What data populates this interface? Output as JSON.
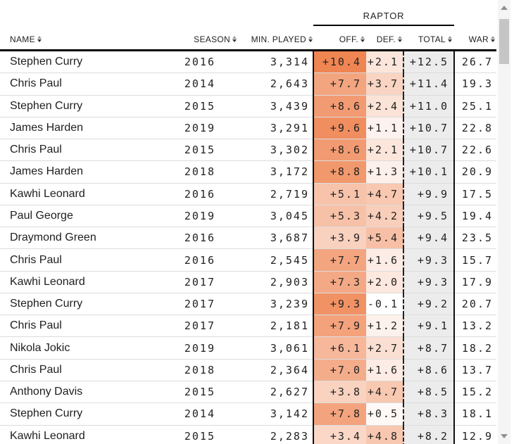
{
  "table": {
    "group_header": {
      "label": "RAPTOR"
    },
    "columns": [
      {
        "id": "name",
        "label": "NAME"
      },
      {
        "id": "season",
        "label": "SEASON"
      },
      {
        "id": "min",
        "label": "MIN. PLAYED"
      },
      {
        "id": "off",
        "label": "OFF."
      },
      {
        "id": "def",
        "label": "DEF."
      },
      {
        "id": "total",
        "label": "TOTAL"
      },
      {
        "id": "war",
        "label": "WAR"
      }
    ],
    "rows": [
      {
        "name": "Stephen Curry",
        "season": "2016",
        "min": "3,314",
        "off": "+10.4",
        "def": "+2.1",
        "total": "+12.5",
        "war": "26.7"
      },
      {
        "name": "Chris Paul",
        "season": "2014",
        "min": "2,643",
        "off": "+7.7",
        "def": "+3.7",
        "total": "+11.4",
        "war": "19.3"
      },
      {
        "name": "Stephen Curry",
        "season": "2015",
        "min": "3,439",
        "off": "+8.6",
        "def": "+2.4",
        "total": "+11.0",
        "war": "25.1"
      },
      {
        "name": "James Harden",
        "season": "2019",
        "min": "3,291",
        "off": "+9.6",
        "def": "+1.1",
        "total": "+10.7",
        "war": "22.8"
      },
      {
        "name": "Chris Paul",
        "season": "2015",
        "min": "3,302",
        "off": "+8.6",
        "def": "+2.1",
        "total": "+10.7",
        "war": "22.6"
      },
      {
        "name": "James Harden",
        "season": "2018",
        "min": "3,172",
        "off": "+8.8",
        "def": "+1.3",
        "total": "+10.1",
        "war": "20.9"
      },
      {
        "name": "Kawhi Leonard",
        "season": "2016",
        "min": "2,719",
        "off": "+5.1",
        "def": "+4.7",
        "total": "+9.9",
        "war": "17.5"
      },
      {
        "name": "Paul George",
        "season": "2019",
        "min": "3,045",
        "off": "+5.3",
        "def": "+4.2",
        "total": "+9.5",
        "war": "19.4"
      },
      {
        "name": "Draymond Green",
        "season": "2016",
        "min": "3,687",
        "off": "+3.9",
        "def": "+5.4",
        "total": "+9.4",
        "war": "23.5"
      },
      {
        "name": "Chris Paul",
        "season": "2016",
        "min": "2,545",
        "off": "+7.7",
        "def": "+1.6",
        "total": "+9.3",
        "war": "15.7"
      },
      {
        "name": "Kawhi Leonard",
        "season": "2017",
        "min": "2,903",
        "off": "+7.3",
        "def": "+2.0",
        "total": "+9.3",
        "war": "17.9"
      },
      {
        "name": "Stephen Curry",
        "season": "2017",
        "min": "3,239",
        "off": "+9.3",
        "def": "-0.1",
        "total": "+9.2",
        "war": "20.7"
      },
      {
        "name": "Chris Paul",
        "season": "2017",
        "min": "2,181",
        "off": "+7.9",
        "def": "+1.2",
        "total": "+9.1",
        "war": "13.2"
      },
      {
        "name": "Nikola Jokic",
        "season": "2019",
        "min": "3,061",
        "off": "+6.1",
        "def": "+2.7",
        "total": "+8.7",
        "war": "18.2"
      },
      {
        "name": "Chris Paul",
        "season": "2018",
        "min": "2,364",
        "off": "+7.0",
        "def": "+1.6",
        "total": "+8.6",
        "war": "13.7"
      },
      {
        "name": "Anthony Davis",
        "season": "2015",
        "min": "2,627",
        "off": "+3.8",
        "def": "+4.7",
        "total": "+8.5",
        "war": "15.2"
      },
      {
        "name": "Stephen Curry",
        "season": "2014",
        "min": "3,142",
        "off": "+7.8",
        "def": "+0.5",
        "total": "+8.3",
        "war": "18.1"
      },
      {
        "name": "Kawhi Leonard",
        "season": "2015",
        "min": "2,283",
        "off": "+3.4",
        "def": "+4.8",
        "total": "+8.2",
        "war": "12.9"
      }
    ],
    "partial_row": {
      "off_color": "#f5ad83",
      "def_color": "#f6b894",
      "total_color": "#ececec"
    }
  },
  "heatmap": {
    "low": "#ffffff",
    "high": "#ef8553",
    "max_value": 10.4,
    "total_bg": "#ececec"
  }
}
